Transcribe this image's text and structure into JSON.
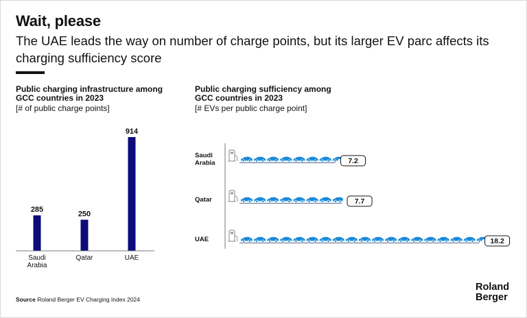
{
  "header": {
    "title": "Wait, please",
    "subtitle": "The UAE leads the way on number of charge points, but its larger EV parc affects its charging sufficiency score"
  },
  "chart_data": [
    {
      "type": "bar",
      "title_line1": "Public charging infrastructure among",
      "title_line2": "GCC countries in 2023",
      "unit": "[# of public charge points]",
      "categories": [
        [
          "Saudi",
          "Arabia"
        ],
        [
          "Qatar"
        ],
        [
          "UAE"
        ]
      ],
      "values": [
        285,
        250,
        914
      ],
      "ylim": [
        0,
        914
      ],
      "bar_color": "#0b0b7a",
      "grid": false
    },
    {
      "type": "bar",
      "orientation": "horizontal",
      "title_line1": "Public charging sufficiency among",
      "title_line2": "GCC countries in 2023",
      "unit": "[# EVs per public charge point]",
      "categories": [
        [
          "Saudi",
          "Arabia"
        ],
        [
          "Qatar"
        ],
        [
          "UAE"
        ]
      ],
      "values": [
        7.2,
        7.7,
        18.2
      ],
      "value_labels": [
        "7.2",
        "7.7",
        "18.2"
      ],
      "car_color": "#1a8ad8",
      "grid": false
    }
  ],
  "footer": {
    "source_label": "Source",
    "source_text": "Roland Berger EV Charging Index 2024",
    "logo_line1": "Roland",
    "logo_line2": "Berger"
  }
}
